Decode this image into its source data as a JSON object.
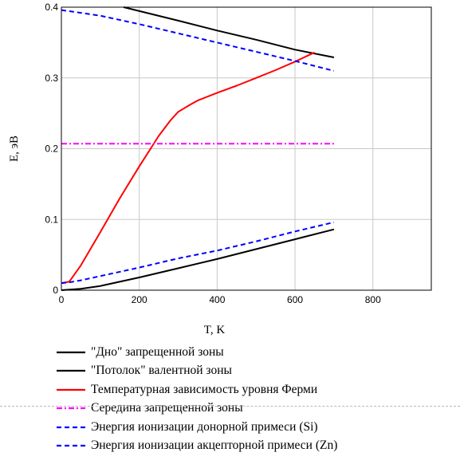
{
  "chart_data": {
    "type": "line",
    "title": "",
    "xlabel": "T, K",
    "ylabel": "E, эВ",
    "xlim": [
      0,
      950
    ],
    "ylim": [
      0,
      0.4
    ],
    "xticks": [
      0,
      200,
      400,
      600,
      800
    ],
    "xtick_labels": [
      "0",
      "200",
      "400",
      "600",
      "800"
    ],
    "yticks": [
      0,
      0.1,
      0.2,
      0.3,
      0.4
    ],
    "ytick_labels": [
      "0",
      "0.1",
      "0.2",
      "0.3",
      "0.4"
    ],
    "grid": true,
    "legend_position": "bottom",
    "series": [
      {
        "name": "\"Дно\" запрещенной зоны",
        "color": "#000000",
        "style": "solid",
        "x": [
          160,
          300,
          400,
          500,
          600,
          700
        ],
        "y": [
          0.4,
          0.381,
          0.367,
          0.354,
          0.34,
          0.329
        ]
      },
      {
        "name": "\"Потолок\" валентной зоны",
        "color": "#000000",
        "style": "solid",
        "x": [
          0,
          50,
          100,
          200,
          300,
          400,
          500,
          600,
          700
        ],
        "y": [
          0,
          0.002,
          0.006,
          0.018,
          0.031,
          0.044,
          0.058,
          0.072,
          0.086
        ]
      },
      {
        "name": "Температурная зависимость уровня Ферми",
        "color": "#ff0000",
        "style": "solid",
        "x": [
          0,
          20,
          50,
          100,
          150,
          200,
          250,
          280,
          300,
          330,
          350,
          400,
          450,
          500,
          550,
          600,
          650
        ],
        "y": [
          0.01,
          0.012,
          0.035,
          0.082,
          0.13,
          0.175,
          0.218,
          0.24,
          0.252,
          0.262,
          0.268,
          0.279,
          0.289,
          0.3,
          0.311,
          0.323,
          0.336
        ]
      },
      {
        "name": "Середина запрещенной зоны",
        "color": "#ff00ff",
        "style": "dashdot",
        "x": [
          0,
          700
        ],
        "y": [
          0.207,
          0.207
        ]
      },
      {
        "name": "Энергия ионизации донорной примеси (Si)",
        "color": "#0000ff",
        "style": "dashed",
        "x": [
          0,
          50,
          100,
          200,
          300,
          400,
          500,
          600,
          700
        ],
        "y": [
          0.396,
          0.392,
          0.388,
          0.376,
          0.363,
          0.35,
          0.337,
          0.324,
          0.31
        ]
      },
      {
        "name": "Энергия ионизации акцепторной примеси (Zn)",
        "color": "#0000ff",
        "style": "dashed",
        "x": [
          0,
          20,
          50,
          100,
          200,
          300,
          400,
          500,
          600,
          700
        ],
        "y": [
          0.01,
          0.011,
          0.014,
          0.02,
          0.032,
          0.045,
          0.056,
          0.069,
          0.083,
          0.096
        ]
      }
    ]
  }
}
